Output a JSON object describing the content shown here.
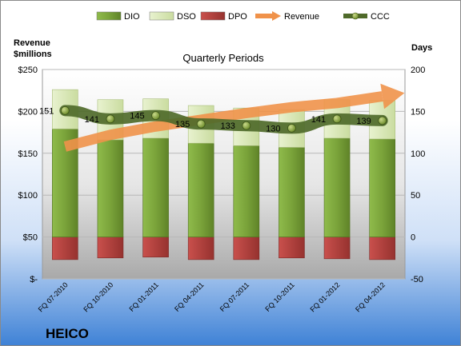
{
  "chart_data": {
    "type": "bar",
    "title": "Quarterly Periods",
    "company": "HEICO",
    "y_left_label_line1": "Revenue",
    "y_left_label_line2": "$millions",
    "y_right_label": "Days",
    "y_left_ticks": [
      "$250",
      "$200",
      "$150",
      "$100",
      "$50",
      "$-"
    ],
    "y_right_ticks": [
      "200",
      "150",
      "100",
      "50",
      "0",
      "-50"
    ],
    "ylim_left": [
      0,
      250
    ],
    "ylim_right": [
      -50,
      200
    ],
    "categories": [
      "FQ 07-2010",
      "FQ 10-2010",
      "FQ 01-2011",
      "FQ 04-2011",
      "FQ 07-2011",
      "FQ 10-2011",
      "FQ 01-2012",
      "FQ 04-2012"
    ],
    "legend": [
      {
        "name": "DIO",
        "key": "dio"
      },
      {
        "name": "DSO",
        "key": "dso"
      },
      {
        "name": "DPO",
        "key": "dpo"
      },
      {
        "name": "Revenue",
        "key": "revenue"
      },
      {
        "name": "CCC",
        "key": "ccc"
      }
    ],
    "series": [
      {
        "name": "DIO",
        "axis": "right",
        "values": [
          129,
          116,
          118,
          112,
          109,
          107,
          118,
          117
        ]
      },
      {
        "name": "DSO",
        "axis": "right",
        "values": [
          47,
          48,
          47,
          45,
          45,
          45,
          46,
          46
        ]
      },
      {
        "name": "DPO",
        "axis": "right",
        "values": [
          -27,
          -25,
          -24,
          -27,
          -27,
          -25,
          -26,
          -27
        ]
      },
      {
        "name": "Revenue",
        "axis": "left",
        "values": [
          158,
          172,
          182,
          190,
          198,
          205,
          210,
          218
        ]
      },
      {
        "name": "CCC",
        "axis": "right",
        "values": [
          151,
          141,
          145,
          135,
          133,
          130,
          141,
          139
        ]
      }
    ],
    "ccc_labels": [
      "151",
      "141",
      "145",
      "135",
      "133",
      "130",
      "141",
      "139"
    ],
    "colors": {
      "dio": "#7aa33a",
      "dso": "#dbe9b8",
      "dpo": "#b3423f",
      "revenue": "#f0924a",
      "ccc": "#4f6a2a"
    }
  }
}
